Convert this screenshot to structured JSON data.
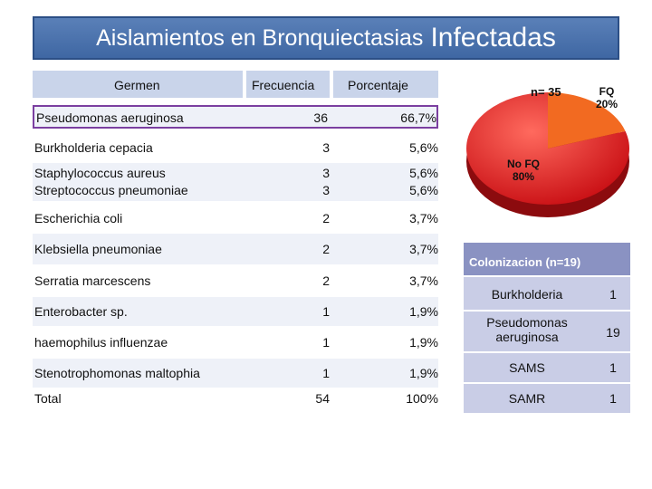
{
  "title": {
    "main": "Aislamientos en Bronquiectasias",
    "emph": "Infectadas"
  },
  "table": {
    "headers": {
      "germ": "Germen",
      "freq": "Frecuencia",
      "pct": "Porcentaje"
    },
    "rows": [
      {
        "germ": "Pseudomonas aeruginosa",
        "freq": "36",
        "pct": "66,7%"
      },
      {
        "germ": "Burkholderia cepacia",
        "freq": "3",
        "pct": "5,6%"
      },
      {
        "germ": "Staphylococcus aureus",
        "freq": "3",
        "pct": "5,6%"
      },
      {
        "germ": "Streptococcus pneumoniae",
        "freq": "3",
        "pct": "5,6%"
      },
      {
        "germ": "Escherichia coli",
        "freq": "2",
        "pct": "3,7%"
      },
      {
        "germ": "Klebsiella pneumoniae",
        "freq": "2",
        "pct": "3,7%"
      },
      {
        "germ": "Serratia marcescens",
        "freq": "2",
        "pct": "3,7%"
      },
      {
        "germ": "Enterobacter sp.",
        "freq": "1",
        "pct": "1,9%"
      },
      {
        "germ": "haemophilus influenzae",
        "freq": "1",
        "pct": "1,9%"
      },
      {
        "germ": "Stenotrophomonas maltophia",
        "freq": "1",
        "pct": "1,9%"
      }
    ],
    "total": {
      "label": "Total",
      "freq": "54",
      "pct": "100%"
    }
  },
  "pie": {
    "n_label": "n= 35",
    "slices": [
      {
        "label": "FQ",
        "pct_label": "20%",
        "value": 20,
        "color": "#f26a21"
      },
      {
        "label": "No FQ",
        "pct_label": "80%",
        "value": 80,
        "color": "#e0161b"
      }
    ]
  },
  "colonization": {
    "title": "Colonizacion (n=19)",
    "rows": [
      {
        "name": "Burkholderia",
        "value": "1"
      },
      {
        "name": "Pseudomonas aeruginosa",
        "value": "19"
      },
      {
        "name": "SAMS",
        "value": "1"
      },
      {
        "name": "SAMR",
        "value": "1"
      }
    ]
  }
}
